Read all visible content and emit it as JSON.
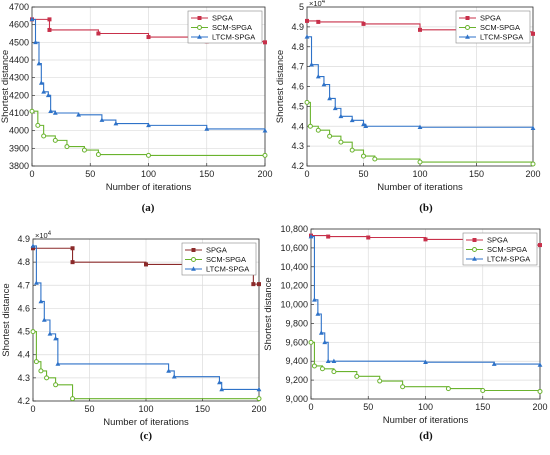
{
  "chart_data": [
    {
      "type": "line",
      "panel": "(a)",
      "xlabel": "Number of iterations",
      "ylabel": "Shortest distance",
      "exponent": "",
      "xlim": [
        0,
        200
      ],
      "ylim": [
        3800,
        4700
      ],
      "xticks": [
        0,
        50,
        100,
        150,
        200
      ],
      "yticks": [
        3800,
        3900,
        4000,
        4100,
        4200,
        4300,
        4400,
        4500,
        4600,
        4700
      ],
      "ytick_labels": [
        "3800",
        "3900",
        "4000",
        "4100",
        "4200",
        "4300",
        "4400",
        "4500",
        "4600",
        "4700"
      ],
      "series": [
        {
          "name": "SPGA",
          "color": "#c8304a",
          "marker": "square",
          "points": [
            [
              0,
              4630
            ],
            [
              15,
              4630
            ],
            [
              15,
              4570
            ],
            [
              57,
              4550
            ],
            [
              100,
              4530
            ],
            [
              150,
              4505
            ],
            [
              200,
              4500
            ]
          ]
        },
        {
          "name": "SCM-SPGA",
          "color": "#6ab32e",
          "marker": "circle",
          "points": [
            [
              0,
              4110
            ],
            [
              5,
              4030
            ],
            [
              10,
              3970
            ],
            [
              20,
              3945
            ],
            [
              30,
              3910
            ],
            [
              45,
              3890
            ],
            [
              57,
              3865
            ],
            [
              100,
              3860
            ],
            [
              200,
              3860
            ]
          ]
        },
        {
          "name": "LTCM-SPGA",
          "color": "#2e72c8",
          "marker": "triangle",
          "points": [
            [
              0,
              4630
            ],
            [
              3,
              4500
            ],
            [
              6,
              4380
            ],
            [
              8,
              4270
            ],
            [
              10,
              4220
            ],
            [
              14,
              4200
            ],
            [
              16,
              4110
            ],
            [
              20,
              4100
            ],
            [
              40,
              4090
            ],
            [
              60,
              4060
            ],
            [
              72,
              4040
            ],
            [
              100,
              4030
            ],
            [
              150,
              4010
            ],
            [
              200,
              4000
            ]
          ]
        }
      ]
    },
    {
      "type": "line",
      "panel": "(b)",
      "xlabel": "Number of iterations",
      "ylabel": "Shortest distance",
      "exponent": "×10^4",
      "xlim": [
        0,
        200
      ],
      "ylim": [
        42000,
        50000
      ],
      "xticks": [
        0,
        50,
        100,
        150,
        200
      ],
      "yticks": [
        42000,
        43000,
        44000,
        45000,
        46000,
        47000,
        48000,
        49000,
        50000
      ],
      "ytick_labels": [
        "4.2",
        "4.3",
        "4.4",
        "4.5",
        "4.6",
        "4.7",
        "4.8",
        "4.9",
        "5"
      ],
      "series": [
        {
          "name": "SPGA",
          "color": "#c8304a",
          "marker": "square",
          "points": [
            [
              0,
              49300
            ],
            [
              10,
              49250
            ],
            [
              50,
              49150
            ],
            [
              100,
              48850
            ],
            [
              150,
              48750
            ],
            [
              200,
              48650
            ]
          ]
        },
        {
          "name": "SCM-SPGA",
          "color": "#6ab32e",
          "marker": "circle",
          "points": [
            [
              0,
              45200
            ],
            [
              3,
              44000
            ],
            [
              10,
              43800
            ],
            [
              20,
              43500
            ],
            [
              30,
              43200
            ],
            [
              40,
              42800
            ],
            [
              50,
              42500
            ],
            [
              60,
              42350
            ],
            [
              100,
              42200
            ],
            [
              200,
              42100
            ]
          ]
        },
        {
          "name": "LTCM-SPGA",
          "color": "#2e72c8",
          "marker": "triangle",
          "points": [
            [
              0,
              48500
            ],
            [
              4,
              47100
            ],
            [
              10,
              46500
            ],
            [
              15,
              46100
            ],
            [
              20,
              45400
            ],
            [
              25,
              44900
            ],
            [
              30,
              44500
            ],
            [
              40,
              44300
            ],
            [
              50,
              44100
            ],
            [
              52,
              44000
            ],
            [
              100,
              43950
            ],
            [
              200,
              43900
            ]
          ]
        }
      ]
    },
    {
      "type": "line",
      "panel": "(c)",
      "xlabel": "Number of iterations",
      "ylabel": "Shortest distance",
      "exponent": "×10^4",
      "xlim": [
        0,
        200
      ],
      "ylim": [
        42000,
        49000
      ],
      "xticks": [
        0,
        50,
        100,
        150,
        200
      ],
      "yticks": [
        42000,
        43000,
        44000,
        45000,
        46000,
        47000,
        48000,
        49000
      ],
      "ytick_labels": [
        "4.2",
        "4.3",
        "4.4",
        "4.5",
        "4.6",
        "4.7",
        "4.8",
        "4.9"
      ],
      "series": [
        {
          "name": "SPGA",
          "color": "#8b2a2a",
          "marker": "square",
          "points": [
            [
              0,
              48600
            ],
            [
              35,
              48600
            ],
            [
              35,
              48000
            ],
            [
              100,
              47900
            ],
            [
              150,
              47800
            ],
            [
              180,
              47700
            ],
            [
              195,
              47050
            ],
            [
              200,
              47050
            ]
          ]
        },
        {
          "name": "SCM-SPGA",
          "color": "#6ab32e",
          "marker": "circle",
          "points": [
            [
              0,
              45000
            ],
            [
              3,
              43700
            ],
            [
              7,
              43300
            ],
            [
              12,
              43000
            ],
            [
              20,
              42700
            ],
            [
              35,
              42100
            ],
            [
              200,
              42100
            ]
          ]
        },
        {
          "name": "LTCM-SPGA",
          "color": "#2e72c8",
          "marker": "triangle",
          "points": [
            [
              0,
              48700
            ],
            [
              3,
              47100
            ],
            [
              7,
              46300
            ],
            [
              10,
              45500
            ],
            [
              15,
              44900
            ],
            [
              20,
              44700
            ],
            [
              22,
              43600
            ],
            [
              120,
              43300
            ],
            [
              125,
              43050
            ],
            [
              165,
              42800
            ],
            [
              167,
              42500
            ],
            [
              200,
              42500
            ]
          ]
        }
      ]
    },
    {
      "type": "line",
      "panel": "(d)",
      "xlabel": "Number of iterations",
      "ylabel": "Shortest distance",
      "exponent": "",
      "xlim": [
        0,
        200
      ],
      "ylim": [
        9000,
        10800
      ],
      "xticks": [
        0,
        50,
        100,
        150,
        200
      ],
      "yticks": [
        9000,
        9200,
        9400,
        9600,
        9800,
        10000,
        10200,
        10400,
        10600,
        10800
      ],
      "ytick_labels": [
        "9,000",
        "9,200",
        "9,400",
        "9,600",
        "9,800",
        "10,000",
        "10,200",
        "10,400",
        "10,600",
        "10,800"
      ],
      "series": [
        {
          "name": "SPGA",
          "color": "#c8304a",
          "marker": "square",
          "points": [
            [
              0,
              10730
            ],
            [
              15,
              10720
            ],
            [
              50,
              10710
            ],
            [
              100,
              10690
            ],
            [
              150,
              10670
            ],
            [
              170,
              10650
            ],
            [
              195,
              10630
            ],
            [
              200,
              10630
            ]
          ]
        },
        {
          "name": "SCM-SPGA",
          "color": "#6ab32e",
          "marker": "circle",
          "points": [
            [
              0,
              9600
            ],
            [
              3,
              9350
            ],
            [
              10,
              9320
            ],
            [
              20,
              9290
            ],
            [
              40,
              9240
            ],
            [
              60,
              9190
            ],
            [
              80,
              9130
            ],
            [
              120,
              9110
            ],
            [
              150,
              9090
            ],
            [
              200,
              9080
            ]
          ]
        },
        {
          "name": "LTCM-SPGA",
          "color": "#2e72c8",
          "marker": "triangle",
          "points": [
            [
              0,
              10720
            ],
            [
              3,
              10050
            ],
            [
              6,
              9900
            ],
            [
              9,
              9700
            ],
            [
              12,
              9600
            ],
            [
              15,
              9400
            ],
            [
              20,
              9400
            ],
            [
              100,
              9390
            ],
            [
              160,
              9370
            ],
            [
              200,
              9360
            ]
          ]
        }
      ]
    }
  ]
}
